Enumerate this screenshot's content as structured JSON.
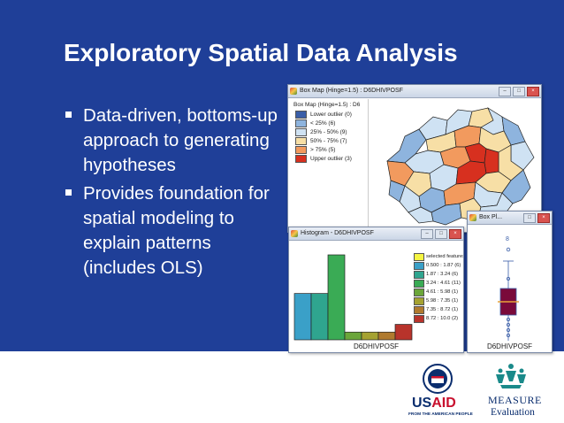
{
  "slide": {
    "title": "Exploratory Spatial Data Analysis",
    "bullets": [
      "Data-driven, bottoms-up approach to generating hypotheses",
      "Provides foundation for spatial modeling to explain patterns (includes OLS)"
    ]
  },
  "map_window": {
    "title": "Box Map (Hinge=1.5) : D6DHIVPOSF",
    "legend_title": "Box Map (Hinge=1.5) : D6",
    "legend": [
      {
        "label": "Lower outlier (0)",
        "color": "#3a5ea8"
      },
      {
        "label": "< 25% (6)",
        "color": "#8eb4de"
      },
      {
        "label": "25% - 50% (9)",
        "color": "#cfe2f3"
      },
      {
        "label": "50% - 75% (7)",
        "color": "#f7dfa6"
      },
      {
        "label": "> 75% (5)",
        "color": "#f29a5e"
      },
      {
        "label": "Upper outlier (3)",
        "color": "#d7301f"
      }
    ]
  },
  "histogram_window": {
    "title": "Histogram - D6DHIVPOSF",
    "caption": "D6DHIVPOSF",
    "legend": [
      {
        "label": "selected features",
        "color": "#f5f542"
      },
      {
        "label": "0.500 : 1.87 (6)",
        "color": "#3aa0c8"
      },
      {
        "label": "1.87 : 3.24 (6)",
        "color": "#2fa58f"
      },
      {
        "label": "3.24 : 4.61 (11)",
        "color": "#3aab55"
      },
      {
        "label": "4.61 : 5.98 (1)",
        "color": "#6ba63a"
      },
      {
        "label": "5.98 : 7.35 (1)",
        "color": "#a5a231"
      },
      {
        "label": "7.35 : 8.72 (1)",
        "color": "#b07a2e"
      },
      {
        "label": "8.72 : 10.0 (2)",
        "color": "#b8332b"
      }
    ],
    "chart_data": {
      "type": "bar",
      "categories": [
        "0.500 : 1.87",
        "1.87 : 3.24",
        "3.24 : 4.61",
        "4.61 : 5.98",
        "5.98 : 7.35",
        "7.35 : 8.72",
        "8.72 : 10.0"
      ],
      "values": [
        6,
        6,
        11,
        1,
        1,
        1,
        2
      ],
      "colors": [
        "#3aa0c8",
        "#2fa58f",
        "#3aab55",
        "#6ba63a",
        "#a5a231",
        "#b07a2e",
        "#b8332b"
      ],
      "ylim": [
        0,
        11
      ],
      "xlabel": "D6DHIVPOSF"
    }
  },
  "box_window": {
    "title": "Box Pl...",
    "caption": "D6DHIVPOSF",
    "outlier_label": "8"
  },
  "logos": {
    "usaid_us": "US",
    "usaid_aid": "AID",
    "usaid_tagline": "FROM THE AMERICAN PEOPLE",
    "measure": "MEASURE",
    "evaluation": "Evaluation"
  },
  "colors": {
    "slide_background": "#1f3f98",
    "map_lower_outlier": "#3a5ea8",
    "map_low": "#8eb4de",
    "map_mid_low": "#cfe2f3",
    "map_mid_high": "#f7dfa6",
    "map_high": "#f29a5e",
    "map_upper_outlier": "#d7301f"
  }
}
